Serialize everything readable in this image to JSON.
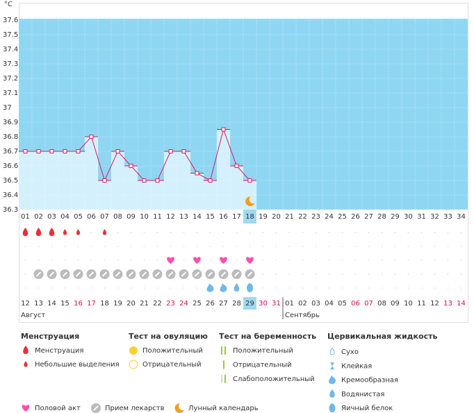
{
  "chart_data": {
    "type": "line",
    "y_label": "°C",
    "categories": [
      "01",
      "02",
      "03",
      "04",
      "05",
      "06",
      "07",
      "08",
      "09",
      "10",
      "11",
      "12",
      "13",
      "14",
      "15",
      "16",
      "17",
      "18",
      "19",
      "20",
      "21",
      "22",
      "23",
      "24",
      "25",
      "26",
      "27",
      "28",
      "29",
      "30",
      "31",
      "32",
      "33",
      "34"
    ],
    "series": [
      {
        "color": "#d81b60",
        "values": [
          36.7,
          36.7,
          36.7,
          36.7,
          36.7,
          36.8,
          36.5,
          36.7,
          36.6,
          36.5,
          36.5,
          36.7,
          36.7,
          36.55,
          36.5,
          36.85,
          36.6,
          36.5,
          null,
          null,
          null,
          null,
          null,
          null,
          null,
          null,
          null,
          null,
          null,
          null,
          null,
          null,
          null,
          null
        ]
      }
    ],
    "ylim": [
      36.3,
      37.6
    ],
    "yticks": [
      36.3,
      36.4,
      36.5,
      36.6,
      36.7,
      36.8,
      36.9,
      37,
      37.1,
      37.2,
      37.3,
      37.4,
      37.5,
      37.6
    ],
    "grid": true,
    "background": "#8fd6f3",
    "bar_color": "#d4f0fc",
    "today_index": 17
  },
  "calendar": {
    "dates": [
      "12",
      "13",
      "14",
      "15",
      "16",
      "17",
      "18",
      "19",
      "20",
      "21",
      "22",
      "23",
      "24",
      "25",
      "26",
      "27",
      "28",
      "29",
      "30",
      "31",
      "01",
      "02",
      "03",
      "04",
      "05",
      "06",
      "07",
      "08",
      "09",
      "10",
      "11",
      "12",
      "13",
      "14"
    ],
    "weekends": [
      false,
      false,
      false,
      false,
      true,
      true,
      false,
      false,
      false,
      false,
      false,
      true,
      true,
      false,
      false,
      false,
      false,
      false,
      true,
      true,
      false,
      false,
      false,
      false,
      false,
      true,
      true,
      false,
      false,
      false,
      false,
      false,
      true,
      true
    ],
    "weekend_color": "#d0104c",
    "months": [
      {
        "label": "Август",
        "start": 0
      },
      {
        "label": "Сентябрь",
        "start": 20
      }
    ],
    "menstruation": [
      "heavy",
      "heavy",
      "heavy",
      "light",
      "light",
      null,
      "light",
      null,
      null,
      null,
      null,
      null,
      null,
      null,
      null,
      null,
      null,
      null,
      null,
      null,
      null,
      null,
      null,
      null,
      null,
      null,
      null,
      null,
      null,
      null,
      null,
      null,
      null,
      null
    ],
    "intercourse": [
      false,
      false,
      false,
      false,
      false,
      false,
      false,
      false,
      false,
      false,
      false,
      true,
      false,
      true,
      false,
      true,
      false,
      true,
      false,
      false,
      false,
      false,
      false,
      false,
      false,
      false,
      false,
      false,
      false,
      false,
      false,
      false,
      false,
      false
    ],
    "medication": [
      false,
      true,
      true,
      true,
      true,
      true,
      true,
      true,
      true,
      true,
      true,
      true,
      true,
      true,
      true,
      true,
      true,
      true,
      false,
      false,
      false,
      false,
      false,
      false,
      false,
      false,
      false,
      false,
      false,
      false,
      false,
      false,
      false,
      false
    ],
    "cervical_fluid": [
      null,
      null,
      null,
      null,
      null,
      null,
      null,
      null,
      null,
      null,
      null,
      null,
      null,
      null,
      "creamy",
      "creamy",
      "watery",
      "egg_white",
      null,
      null,
      null,
      null,
      null,
      null,
      null,
      null,
      null,
      null,
      null,
      null,
      null,
      null,
      null,
      null
    ],
    "moon_index": 17
  },
  "legend": {
    "groups": [
      {
        "title": "Менструация",
        "items": [
          "Менструация",
          "Небольшие выделения"
        ]
      },
      {
        "title": "Тест на овуляцию",
        "items": [
          "Положительный",
          "Отрицательный"
        ]
      },
      {
        "title": "Тест на беременность",
        "items": [
          "Положительный",
          "Отрицательный",
          "Слабоположительный"
        ]
      },
      {
        "title": "Цервикальная жидкость",
        "items": [
          "Сухо",
          "Клейкая",
          "Кремообразная",
          "Водянистая",
          "Яичный белок"
        ]
      }
    ],
    "other": [
      "Половой акт",
      "Прием лекарств",
      "Лунный календарь"
    ]
  }
}
